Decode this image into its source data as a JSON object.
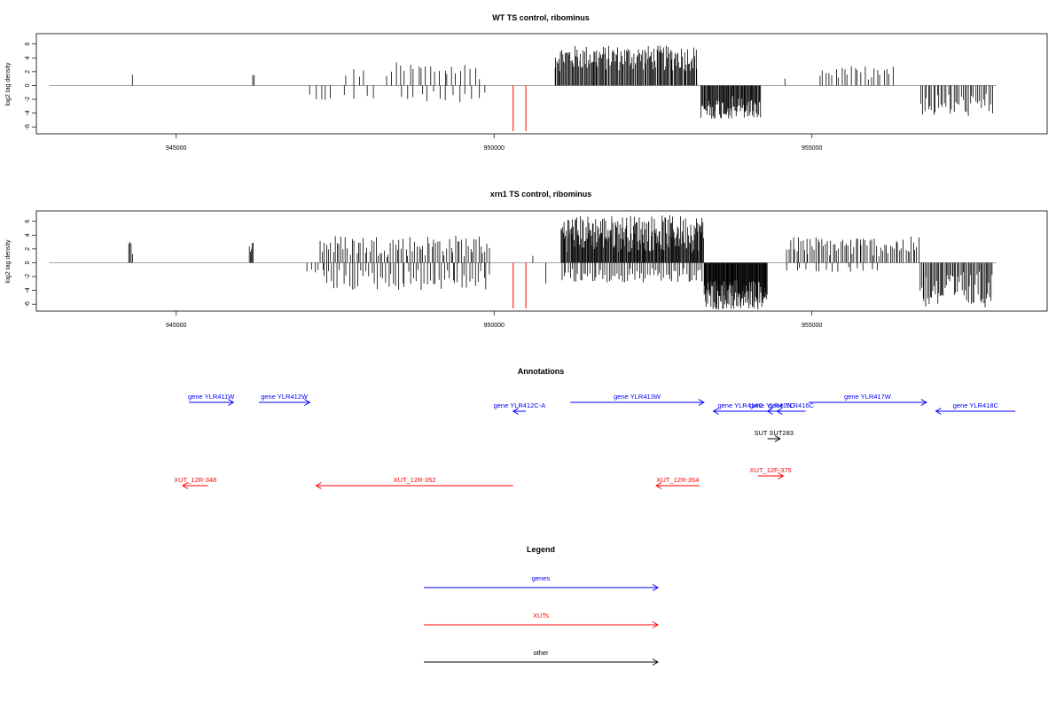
{
  "chart_data": [
    {
      "type": "bar",
      "title": "WT TS control, ribominus",
      "ylabel": "log2 tag density",
      "xlim": [
        942800,
        958700
      ],
      "ylim": [
        -7,
        7.5
      ],
      "xticks": [
        945000,
        950000,
        955000
      ],
      "yticks": [
        -6,
        -4,
        -2,
        0,
        2,
        4,
        6
      ],
      "baseline": {
        "from": 943000,
        "to": 957900,
        "y": 0,
        "color": "#999999"
      },
      "bar_color": "#000000",
      "red_color": "#ff0000",
      "spike_segments": [
        {
          "from": 944300,
          "to": 944320,
          "count": 1,
          "minAbs": 1.5,
          "maxAbs": 1.6,
          "sign": 1
        },
        {
          "from": 946200,
          "to": 946230,
          "count": 2,
          "minAbs": 1.0,
          "maxAbs": 1.7,
          "sign": 1
        },
        {
          "from": 947050,
          "to": 947500,
          "count": 5,
          "minAbs": 1.0,
          "maxAbs": 2.3,
          "sign": -1
        },
        {
          "from": 947650,
          "to": 948000,
          "count": 4,
          "minAbs": 1.0,
          "maxAbs": 2.5,
          "sign": 1
        },
        {
          "from": 947600,
          "to": 948200,
          "count": 4,
          "minAbs": 1.0,
          "maxAbs": 2.0,
          "sign": -1
        },
        {
          "from": 948300,
          "to": 949800,
          "count": 22,
          "minAbs": 0.8,
          "maxAbs": 3.4,
          "sign": 1
        },
        {
          "from": 948500,
          "to": 949900,
          "count": 14,
          "minAbs": 0.8,
          "maxAbs": 2.4,
          "sign": -1
        },
        {
          "from": 950950,
          "to": 953200,
          "count": 150,
          "minAbs": 2.0,
          "maxAbs": 5.8,
          "sign": 1
        },
        {
          "from": 953250,
          "to": 954200,
          "count": 80,
          "minAbs": 1.5,
          "maxAbs": 4.9,
          "sign": -1
        },
        {
          "from": 954550,
          "to": 954600,
          "count": 1,
          "minAbs": 1.0,
          "maxAbs": 1.0,
          "sign": 1
        },
        {
          "from": 955100,
          "to": 956300,
          "count": 24,
          "minAbs": 0.8,
          "maxAbs": 2.8,
          "sign": 1
        },
        {
          "from": 956700,
          "to": 957850,
          "count": 40,
          "minAbs": 1.0,
          "maxAbs": 4.5,
          "sign": -1
        }
      ],
      "red_marks": [
        {
          "x": 950300,
          "y": -6.6
        },
        {
          "x": 950500,
          "y": -6.6
        }
      ]
    },
    {
      "type": "bar",
      "title": "xrn1 TS control, ribominus",
      "ylabel": "log2 tag density",
      "xlim": [
        942800,
        958700
      ],
      "ylim": [
        -7,
        7.5
      ],
      "xticks": [
        945000,
        950000,
        955000
      ],
      "yticks": [
        -6,
        -4,
        -2,
        0,
        2,
        4,
        6
      ],
      "baseline": {
        "from": 943000,
        "to": 957900,
        "y": 0,
        "color": "#999999"
      },
      "bar_color": "#000000",
      "red_color": "#ff0000",
      "spike_segments": [
        {
          "from": 944240,
          "to": 944320,
          "count": 4,
          "minAbs": 1.2,
          "maxAbs": 3.2,
          "sign": 1
        },
        {
          "from": 946150,
          "to": 946220,
          "count": 5,
          "minAbs": 1.5,
          "maxAbs": 3.1,
          "sign": 1
        },
        {
          "from": 947050,
          "to": 947350,
          "count": 5,
          "minAbs": 0.8,
          "maxAbs": 1.6,
          "sign": -1
        },
        {
          "from": 947250,
          "to": 949950,
          "count": 80,
          "minAbs": 0.8,
          "maxAbs": 4.0,
          "sign": 1
        },
        {
          "from": 947300,
          "to": 949950,
          "count": 60,
          "minAbs": 0.8,
          "maxAbs": 4.0,
          "sign": -1
        },
        {
          "from": 950600,
          "to": 950620,
          "count": 1,
          "minAbs": 1.0,
          "maxAbs": 1.0,
          "sign": 1
        },
        {
          "from": 950800,
          "to": 950830,
          "count": 1,
          "minAbs": 3.0,
          "maxAbs": 3.0,
          "sign": -1
        },
        {
          "from": 951050,
          "to": 953300,
          "count": 200,
          "minAbs": 1.5,
          "maxAbs": 6.9,
          "sign": 1
        },
        {
          "from": 951050,
          "to": 953300,
          "count": 70,
          "minAbs": 0.8,
          "maxAbs": 3.0,
          "sign": -1
        },
        {
          "from": 953300,
          "to": 954300,
          "count": 120,
          "minAbs": 2.5,
          "maxAbs": 6.8,
          "sign": -1
        },
        {
          "from": 954600,
          "to": 956700,
          "count": 70,
          "minAbs": 0.8,
          "maxAbs": 3.8,
          "sign": 1
        },
        {
          "from": 954600,
          "to": 956100,
          "count": 15,
          "minAbs": 0.5,
          "maxAbs": 1.4,
          "sign": -1
        },
        {
          "from": 956700,
          "to": 957850,
          "count": 60,
          "minAbs": 1.0,
          "maxAbs": 6.5,
          "sign": -1
        }
      ],
      "red_marks": [
        {
          "x": 950300,
          "y": -6.6
        },
        {
          "x": 950500,
          "y": -6.6
        }
      ]
    }
  ],
  "annotations": {
    "title": "Annotations",
    "colors": {
      "gene": "#0000ff",
      "xut": "#ff0000",
      "other": "#000000"
    },
    "features": [
      {
        "label": "gene YLR411W",
        "type": "gene",
        "start": 945200,
        "end": 945900,
        "dir": "+",
        "row": 1
      },
      {
        "label": "gene YLR412W",
        "type": "gene",
        "start": 946300,
        "end": 947100,
        "dir": "+",
        "row": 1
      },
      {
        "label": "gene YLR412C-A",
        "type": "gene",
        "start": 950300,
        "end": 950500,
        "dir": "-",
        "row": 2
      },
      {
        "label": "gene YLR413W",
        "type": "gene",
        "start": 951200,
        "end": 953300,
        "dir": "+",
        "row": 1
      },
      {
        "label": "gene YLR414C",
        "type": "gene",
        "start": 953450,
        "end": 954300,
        "dir": "-",
        "row": 2
      },
      {
        "label": "gene YLR415C",
        "type": "gene",
        "start": 954300,
        "end": 954450,
        "dir": "-",
        "row": 2
      },
      {
        "label": "gene YLR416C",
        "type": "gene",
        "start": 954450,
        "end": 954900,
        "dir": "-",
        "row": 2
      },
      {
        "label": "gene YLR417W",
        "type": "gene",
        "start": 954950,
        "end": 956800,
        "dir": "+",
        "row": 1
      },
      {
        "label": "gene YLR418C",
        "type": "gene",
        "start": 956950,
        "end": 958200,
        "dir": "-",
        "row": 2
      },
      {
        "label": "SUT SUT283",
        "type": "other",
        "start": 954300,
        "end": 954500,
        "dir": "+",
        "row": 3
      },
      {
        "label": "XUT_12F-375",
        "type": "xut",
        "start": 954150,
        "end": 954550,
        "dir": "+",
        "row": 4
      },
      {
        "label": "XUT_12R-348",
        "type": "xut",
        "start": 945100,
        "end": 945500,
        "dir": "-",
        "row": 5
      },
      {
        "label": "XUT_12R-352",
        "type": "xut",
        "start": 947200,
        "end": 950300,
        "dir": "-",
        "row": 5
      },
      {
        "label": "XUT_12R-354",
        "type": "xut",
        "start": 952550,
        "end": 953230,
        "dir": "-",
        "row": 5
      }
    ]
  },
  "legend": {
    "title": "Legend",
    "items": [
      {
        "label": "genes",
        "color": "#0000ff"
      },
      {
        "label": "XUTs",
        "color": "#ff0000"
      },
      {
        "label": "other",
        "color": "#000000"
      }
    ]
  }
}
